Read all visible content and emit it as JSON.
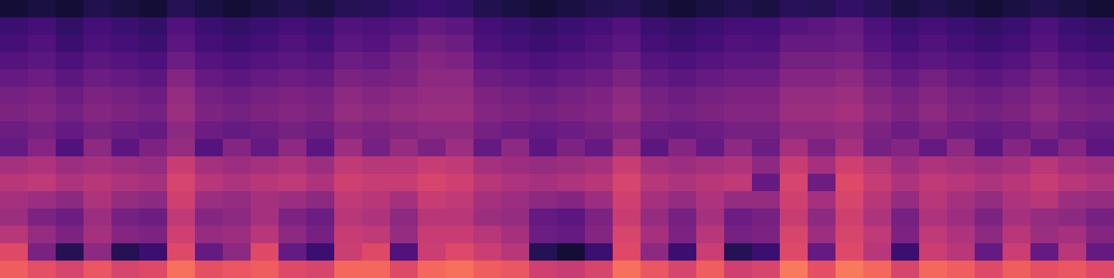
{
  "chart_data": {
    "type": "heatmap",
    "color": "magma",
    "tick_labels": false,
    "zlim": [
      0,
      1
    ],
    "cells": [
      [
        0.1,
        0.12,
        0.1,
        0.14,
        0.12,
        0.1,
        0.15,
        0.12,
        0.1,
        0.12,
        0.14,
        0.12,
        0.15,
        0.16,
        0.18,
        0.2,
        0.18,
        0.14,
        0.12,
        0.1,
        0.12,
        0.14,
        0.15,
        0.12,
        0.1,
        0.12,
        0.14,
        0.12,
        0.16,
        0.15,
        0.18,
        0.16,
        0.12,
        0.14,
        0.12,
        0.1,
        0.12,
        0.14,
        0.12,
        0.1
      ],
      [
        0.2,
        0.22,
        0.18,
        0.22,
        0.2,
        0.18,
        0.25,
        0.2,
        0.18,
        0.2,
        0.22,
        0.2,
        0.25,
        0.24,
        0.26,
        0.3,
        0.28,
        0.22,
        0.2,
        0.18,
        0.2,
        0.22,
        0.25,
        0.2,
        0.18,
        0.2,
        0.22,
        0.22,
        0.26,
        0.28,
        0.3,
        0.24,
        0.2,
        0.22,
        0.2,
        0.18,
        0.2,
        0.24,
        0.2,
        0.18
      ],
      [
        0.22,
        0.25,
        0.2,
        0.24,
        0.22,
        0.2,
        0.28,
        0.22,
        0.2,
        0.22,
        0.25,
        0.22,
        0.28,
        0.26,
        0.3,
        0.34,
        0.32,
        0.24,
        0.22,
        0.2,
        0.22,
        0.25,
        0.28,
        0.22,
        0.2,
        0.22,
        0.25,
        0.24,
        0.3,
        0.3,
        0.32,
        0.26,
        0.22,
        0.25,
        0.22,
        0.2,
        0.22,
        0.26,
        0.22,
        0.2
      ],
      [
        0.26,
        0.28,
        0.24,
        0.28,
        0.26,
        0.24,
        0.32,
        0.26,
        0.24,
        0.26,
        0.28,
        0.26,
        0.32,
        0.3,
        0.34,
        0.38,
        0.36,
        0.28,
        0.26,
        0.24,
        0.26,
        0.28,
        0.32,
        0.26,
        0.24,
        0.26,
        0.28,
        0.28,
        0.34,
        0.34,
        0.36,
        0.3,
        0.26,
        0.28,
        0.26,
        0.24,
        0.26,
        0.3,
        0.26,
        0.24
      ],
      [
        0.3,
        0.32,
        0.28,
        0.32,
        0.3,
        0.28,
        0.38,
        0.3,
        0.28,
        0.3,
        0.32,
        0.3,
        0.36,
        0.34,
        0.36,
        0.4,
        0.4,
        0.32,
        0.3,
        0.28,
        0.3,
        0.32,
        0.36,
        0.3,
        0.28,
        0.3,
        0.32,
        0.32,
        0.38,
        0.38,
        0.4,
        0.34,
        0.3,
        0.34,
        0.3,
        0.28,
        0.3,
        0.34,
        0.3,
        0.28
      ],
      [
        0.34,
        0.36,
        0.32,
        0.36,
        0.34,
        0.32,
        0.42,
        0.34,
        0.32,
        0.34,
        0.36,
        0.34,
        0.4,
        0.38,
        0.4,
        0.42,
        0.42,
        0.36,
        0.34,
        0.32,
        0.34,
        0.36,
        0.4,
        0.34,
        0.32,
        0.34,
        0.36,
        0.36,
        0.42,
        0.42,
        0.44,
        0.38,
        0.34,
        0.38,
        0.34,
        0.32,
        0.34,
        0.38,
        0.34,
        0.32
      ],
      [
        0.36,
        0.38,
        0.34,
        0.38,
        0.36,
        0.34,
        0.44,
        0.36,
        0.34,
        0.36,
        0.38,
        0.36,
        0.42,
        0.4,
        0.42,
        0.44,
        0.44,
        0.38,
        0.36,
        0.34,
        0.36,
        0.38,
        0.42,
        0.36,
        0.34,
        0.36,
        0.38,
        0.38,
        0.44,
        0.44,
        0.46,
        0.4,
        0.36,
        0.4,
        0.36,
        0.34,
        0.36,
        0.4,
        0.36,
        0.34
      ],
      [
        0.32,
        0.34,
        0.3,
        0.34,
        0.32,
        0.3,
        0.4,
        0.32,
        0.3,
        0.32,
        0.34,
        0.32,
        0.38,
        0.36,
        0.38,
        0.4,
        0.4,
        0.34,
        0.32,
        0.3,
        0.32,
        0.34,
        0.38,
        0.32,
        0.3,
        0.32,
        0.34,
        0.34,
        0.4,
        0.4,
        0.42,
        0.36,
        0.32,
        0.36,
        0.32,
        0.3,
        0.32,
        0.36,
        0.32,
        0.3
      ],
      [
        0.3,
        0.38,
        0.25,
        0.4,
        0.28,
        0.36,
        0.42,
        0.26,
        0.38,
        0.3,
        0.4,
        0.28,
        0.44,
        0.34,
        0.42,
        0.36,
        0.44,
        0.3,
        0.4,
        0.28,
        0.36,
        0.3,
        0.44,
        0.28,
        0.38,
        0.3,
        0.4,
        0.32,
        0.46,
        0.36,
        0.46,
        0.34,
        0.38,
        0.3,
        0.4,
        0.28,
        0.38,
        0.3,
        0.38,
        0.28
      ],
      [
        0.46,
        0.48,
        0.44,
        0.46,
        0.44,
        0.42,
        0.54,
        0.46,
        0.44,
        0.46,
        0.48,
        0.44,
        0.52,
        0.5,
        0.5,
        0.54,
        0.52,
        0.46,
        0.44,
        0.42,
        0.44,
        0.46,
        0.54,
        0.46,
        0.44,
        0.46,
        0.48,
        0.4,
        0.54,
        0.46,
        0.56,
        0.5,
        0.44,
        0.48,
        0.46,
        0.44,
        0.46,
        0.5,
        0.46,
        0.44
      ],
      [
        0.5,
        0.52,
        0.48,
        0.5,
        0.48,
        0.46,
        0.58,
        0.5,
        0.48,
        0.5,
        0.52,
        0.48,
        0.56,
        0.54,
        0.54,
        0.58,
        0.56,
        0.5,
        0.48,
        0.46,
        0.48,
        0.5,
        0.58,
        0.5,
        0.48,
        0.5,
        0.52,
        0.3,
        0.58,
        0.32,
        0.6,
        0.54,
        0.48,
        0.52,
        0.5,
        0.48,
        0.5,
        0.54,
        0.5,
        0.48
      ],
      [
        0.46,
        0.44,
        0.4,
        0.48,
        0.42,
        0.4,
        0.56,
        0.44,
        0.42,
        0.46,
        0.44,
        0.4,
        0.52,
        0.5,
        0.46,
        0.54,
        0.52,
        0.46,
        0.44,
        0.4,
        0.38,
        0.44,
        0.56,
        0.46,
        0.42,
        0.48,
        0.42,
        0.42,
        0.56,
        0.46,
        0.58,
        0.5,
        0.42,
        0.5,
        0.46,
        0.42,
        0.48,
        0.5,
        0.44,
        0.42
      ],
      [
        0.44,
        0.36,
        0.32,
        0.44,
        0.34,
        0.32,
        0.52,
        0.38,
        0.4,
        0.46,
        0.36,
        0.32,
        0.5,
        0.48,
        0.4,
        0.5,
        0.5,
        0.44,
        0.42,
        0.3,
        0.28,
        0.36,
        0.54,
        0.42,
        0.34,
        0.46,
        0.32,
        0.34,
        0.54,
        0.4,
        0.56,
        0.48,
        0.34,
        0.48,
        0.44,
        0.36,
        0.46,
        0.42,
        0.4,
        0.34
      ],
      [
        0.5,
        0.42,
        0.36,
        0.46,
        0.38,
        0.36,
        0.56,
        0.42,
        0.44,
        0.5,
        0.4,
        0.34,
        0.54,
        0.52,
        0.42,
        0.54,
        0.54,
        0.5,
        0.46,
        0.32,
        0.3,
        0.38,
        0.58,
        0.46,
        0.36,
        0.5,
        0.34,
        0.36,
        0.58,
        0.44,
        0.58,
        0.52,
        0.36,
        0.52,
        0.48,
        0.4,
        0.5,
        0.44,
        0.46,
        0.38
      ],
      [
        0.6,
        0.35,
        0.15,
        0.4,
        0.15,
        0.2,
        0.6,
        0.3,
        0.4,
        0.6,
        0.3,
        0.2,
        0.55,
        0.6,
        0.25,
        0.55,
        0.6,
        0.55,
        0.5,
        0.15,
        0.1,
        0.2,
        0.6,
        0.4,
        0.2,
        0.55,
        0.15,
        0.2,
        0.6,
        0.3,
        0.6,
        0.5,
        0.2,
        0.55,
        0.5,
        0.3,
        0.55,
        0.3,
        0.5,
        0.3
      ],
      [
        0.66,
        0.62,
        0.58,
        0.64,
        0.58,
        0.6,
        0.7,
        0.62,
        0.64,
        0.66,
        0.6,
        0.58,
        0.68,
        0.68,
        0.6,
        0.68,
        0.7,
        0.66,
        0.64,
        0.56,
        0.54,
        0.58,
        0.7,
        0.64,
        0.58,
        0.66,
        0.56,
        0.58,
        0.72,
        0.62,
        0.72,
        0.68,
        0.58,
        0.68,
        0.66,
        0.6,
        0.66,
        0.62,
        0.64,
        0.6
      ]
    ]
  }
}
